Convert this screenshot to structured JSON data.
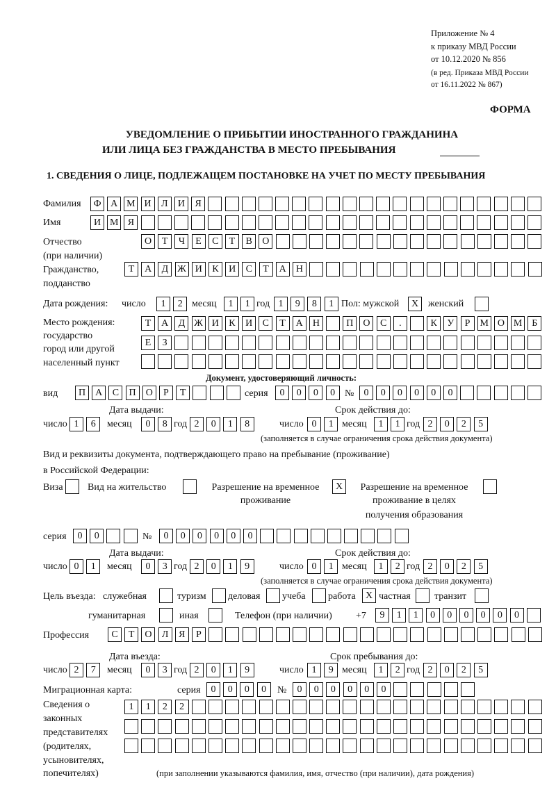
{
  "header": {
    "appendix": [
      "Приложение № 4",
      "к приказу МВД России",
      "от 10.12.2020 № 856"
    ],
    "revision": [
      "(в ред. Приказа МВД России",
      "от 16.11.2022 № 867)"
    ],
    "form_label": "ФОРМА",
    "title": [
      "УВЕДОМЛЕНИЕ О ПРИБЫТИИ ИНОСТРАННОГО ГРАЖДАНИНА",
      "ИЛИ ЛИЦА БЕЗ ГРАЖДАНСТВА В МЕСТО ПРЕБЫВАНИЯ"
    ],
    "section": "1. СВЕДЕНИЯ О ЛИЦЕ, ПОДЛЕЖАЩЕМ ПОСТАНОВКЕ НА УЧЕТ ПО МЕСТУ ПРЕБЫВАНИЯ"
  },
  "person": {
    "surname_label": "Фамилия",
    "surname": "ФАМИЛИЯ",
    "name_label": "Имя",
    "name": "ИМЯ",
    "patronymic_label": [
      "Отчество",
      "(при наличии)"
    ],
    "patronymic": "ОТЧЕСТВО",
    "citizenship_label": [
      "Гражданство,",
      "подданство"
    ],
    "citizenship": "ТАДЖИКИСТАН",
    "dob_label": "Дата рождения:",
    "day_label": "число",
    "month_label": "месяц",
    "year_label": "год",
    "dob": {
      "day": "12",
      "month": "11",
      "year": "1981"
    },
    "sex_label": "Пол: мужской",
    "female_label": "женский",
    "male": "X",
    "female": "",
    "birthplace_label": [
      "Место рождения:",
      "государство",
      "город или другой",
      "населенный пункт"
    ],
    "birthplace": [
      "ТАДЖИКИСТАН ПОС. КУРМОМБ",
      "ЕЗ",
      ""
    ]
  },
  "id_document": {
    "heading": "Документ, удостоверяющий личность:",
    "type_label": "вид",
    "type": "ПАСПОРТ",
    "series_label": "серия",
    "series": "0000",
    "number_label": "№",
    "number": "000000",
    "issue_label": "Дата выдачи:",
    "expiry_label": "Срок действия до:",
    "issue": {
      "day": "16",
      "month": "08",
      "year": "2018"
    },
    "expiry": {
      "day": "01",
      "month": "11",
      "year": "2025"
    },
    "note": "(заполняется в случае ограничения срока действия документа)"
  },
  "residence_document": {
    "heading": [
      "Вид и реквизиты документа, подтверждающего право на пребывание (проживание)",
      "в Российской Федерации:"
    ],
    "options": [
      {
        "label": [
          "Виза"
        ],
        "checked": ""
      },
      {
        "label": [
          "Вид на жительство"
        ],
        "checked": ""
      },
      {
        "label": [
          "Разрешение на временное",
          "проживание"
        ],
        "checked": "X"
      },
      {
        "label": [
          "Разрешение на временное",
          "проживание в целях",
          "получения образования"
        ],
        "checked": ""
      }
    ],
    "series_label": "серия",
    "series": "00",
    "number_label": "№",
    "number": "000000",
    "issue_label": "Дата выдачи:",
    "expiry_label": "Срок действия до:",
    "issue": {
      "day": "01",
      "month": "03",
      "year": "2019"
    },
    "expiry": {
      "day": "01",
      "month": "12",
      "year": "2025"
    },
    "note": "(заполняется в случае ограничения срока действия документа)"
  },
  "purpose": {
    "label": "Цель въезда:",
    "options": [
      {
        "label": "служебная",
        "checked": ""
      },
      {
        "label": "туризм",
        "checked": ""
      },
      {
        "label": "деловая",
        "checked": ""
      },
      {
        "label": "учеба",
        "checked": ""
      },
      {
        "label": "работа",
        "checked": "X"
      },
      {
        "label": "частная",
        "checked": ""
      },
      {
        "label": "транзит",
        "checked": ""
      },
      {
        "label": "гуманитарная",
        "checked": ""
      },
      {
        "label": "иная",
        "checked": ""
      }
    ],
    "phone_label": "Телефон (при наличии)",
    "phone_prefix": "+7",
    "phone": "911000000"
  },
  "profession": {
    "label": "Профессия",
    "value": "СТОЛЯР"
  },
  "stay": {
    "entry_label": "Дата въезда:",
    "until_label": "Срок пребывания до:",
    "entry": {
      "day": "27",
      "month": "03",
      "year": "2019"
    },
    "until": {
      "day": "19",
      "month": "12",
      "year": "2025"
    }
  },
  "migration_card": {
    "label": "Миграционная карта:",
    "series_label": "серия",
    "series": "0000",
    "number_label": "№",
    "number": "000000"
  },
  "legal_representatives": {
    "label": [
      "Сведения о",
      "законных",
      "представителях",
      "(родителях,",
      "усыновителях,",
      "попечителях)"
    ],
    "values": [
      "1122",
      "",
      ""
    ],
    "note": "(при заполнении указываются фамилия, имя, отчество (при наличии), дата рождения)"
  }
}
